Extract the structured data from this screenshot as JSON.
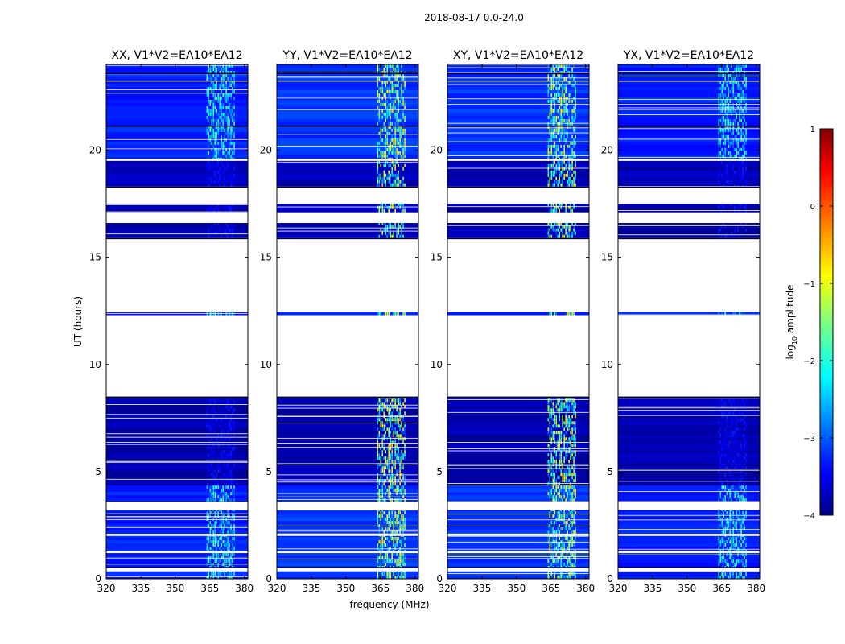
{
  "figure": {
    "suptitle": "2018-08-17 0.0-24.0"
  },
  "colors": {
    "background": "#ffffff",
    "axis": "#000000",
    "flag": "#ffffff"
  },
  "chart_data": [
    {
      "type": "heatmap",
      "title": "XX, V1*V2=EA10*EA12",
      "xlabel": "",
      "ylabel": "UT (hours)",
      "xlim": [
        320,
        381.5
      ],
      "ylim": [
        0,
        24
      ],
      "xticks": [
        "320",
        "335",
        "350",
        "365",
        "380"
      ],
      "yticks": [
        "0",
        "5",
        "10",
        "15",
        "20"
      ],
      "rfi_band_mhz": [
        363.5,
        376
      ],
      "brightness": 0.35
    },
    {
      "type": "heatmap",
      "title": "YY, V1*V2=EA10*EA12",
      "xlabel": "frequency (MHz)",
      "ylabel": "",
      "xlim": [
        320,
        381.5
      ],
      "ylim": [
        0,
        24
      ],
      "xticks": [
        "320",
        "335",
        "350",
        "365",
        "380"
      ],
      "yticks": [
        "0",
        "5",
        "10",
        "15",
        "20"
      ],
      "rfi_band_mhz": [
        363.5,
        376
      ],
      "brightness": 1.0
    },
    {
      "type": "heatmap",
      "title": "XY, V1*V2=EA10*EA12",
      "xlabel": "",
      "ylabel": "",
      "xlim": [
        320,
        381.5
      ],
      "ylim": [
        0,
        24
      ],
      "xticks": [
        "320",
        "335",
        "350",
        "365",
        "380"
      ],
      "yticks": [
        "0",
        "5",
        "10",
        "15",
        "20"
      ],
      "rfi_band_mhz": [
        363.5,
        376
      ],
      "brightness": 0.95
    },
    {
      "type": "heatmap",
      "title": "YX, V1*V2=EA10*EA12",
      "xlabel": "",
      "ylabel": "",
      "xlim": [
        320,
        381.5
      ],
      "ylim": [
        0,
        24
      ],
      "xticks": [
        "320",
        "335",
        "350",
        "365",
        "380"
      ],
      "yticks": [
        "0",
        "5",
        "10",
        "15",
        "20"
      ],
      "rfi_band_mhz": [
        363.5,
        376
      ],
      "brightness": 0.3
    }
  ],
  "colorbar": {
    "label": "log10 amplitude",
    "label_main": "log",
    "label_sub": "10",
    "label_rest": " amplitude",
    "colormap": "jet",
    "range": [
      -4,
      1
    ],
    "ticks": [
      "1",
      "0",
      "−1",
      "−2",
      "−3",
      "−4"
    ]
  }
}
